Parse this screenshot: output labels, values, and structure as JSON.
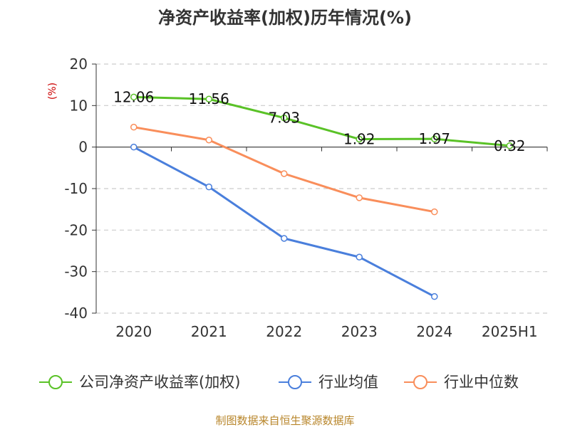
{
  "chart_data": {
    "type": "line",
    "title": "净资产收益率(加权)历年情况(%)",
    "ylabel": "(%)",
    "categories": [
      "2020",
      "2021",
      "2022",
      "2023",
      "2024",
      "2025H1"
    ],
    "ylim": [
      -40,
      20
    ],
    "yticks": [
      20,
      10,
      0,
      -10,
      -20,
      -30,
      -40
    ],
    "grid": true,
    "legend_position": "bottom",
    "series": [
      {
        "name": "公司净资产收益率(加权)",
        "color": "#5ac227",
        "values": [
          12.06,
          11.56,
          7.03,
          1.92,
          1.97,
          0.32
        ],
        "labels": [
          "12.06",
          "11.56",
          "7.03",
          "1.92",
          "1.97",
          "0.32"
        ]
      },
      {
        "name": "行业均值",
        "color": "#4a7fdc",
        "values": [
          0.0,
          -9.6,
          -22.0,
          -26.5,
          -36.0,
          null
        ]
      },
      {
        "name": "行业中位数",
        "color": "#f98e5b",
        "values": [
          4.8,
          1.7,
          -6.4,
          -12.2,
          -15.6,
          null
        ]
      }
    ]
  },
  "footer": {
    "source": "制图数据来自恒生聚源数据库"
  }
}
